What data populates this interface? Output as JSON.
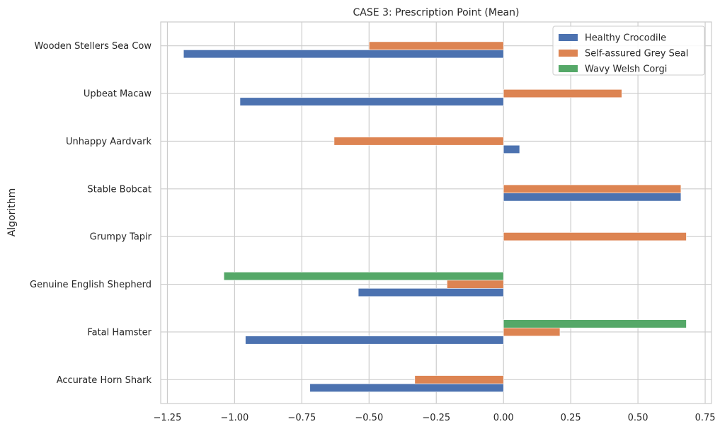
{
  "chart_data": {
    "type": "bar",
    "orientation": "horizontal",
    "title": "CASE 3: Prescription Point (Mean)",
    "xlabel": "",
    "ylabel": "Algorithm",
    "xlim": [
      -1.25,
      0.75
    ],
    "xticks": [
      -1.25,
      -1.0,
      -0.75,
      -0.5,
      -0.25,
      0.0,
      0.25,
      0.5,
      0.75
    ],
    "xtick_labels": [
      "−1.25",
      "−1.00",
      "−0.75",
      "−0.50",
      "−0.25",
      "0.00",
      "0.25",
      "0.50",
      "0.75"
    ],
    "grid": true,
    "legend_position": "top-right",
    "categories": [
      "Accurate Horn Shark",
      "Fatal Hamster",
      "Genuine English Shepherd",
      "Grumpy Tapir",
      "Stable Bobcat",
      "Unhappy Aardvark",
      "Upbeat Macaw",
      "Wooden Stellers Sea Cow"
    ],
    "series": [
      {
        "name": "Healthy Crocodile",
        "color": "#4c72b0",
        "values": [
          -0.72,
          -0.96,
          -0.54,
          null,
          0.66,
          0.06,
          -0.98,
          -1.19
        ]
      },
      {
        "name": "Self-assured Grey Seal",
        "color": "#dd8452",
        "values": [
          -0.33,
          0.21,
          -0.21,
          0.68,
          0.66,
          -0.63,
          0.44,
          -0.5
        ]
      },
      {
        "name": "Wavy Welsh Corgi",
        "color": "#55a868",
        "values": [
          null,
          0.68,
          -1.04,
          null,
          null,
          null,
          null,
          null
        ]
      }
    ]
  }
}
